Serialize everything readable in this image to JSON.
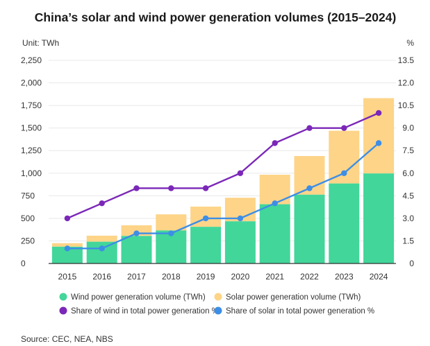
{
  "colors": {
    "wind": "#42d69a",
    "solar": "#fdd488",
    "wind_share": "#7b27b8",
    "solar_share": "#3d8ee6",
    "grid": "#e8e8e8",
    "axis": "#333333"
  },
  "chart_data": {
    "type": "bar",
    "title": "China’s solar and wind power generation volumes (2015–2024)",
    "left_unit_label": "Unit: TWh",
    "right_unit_label": "%",
    "categories": [
      "2015",
      "2016",
      "2017",
      "2018",
      "2019",
      "2020",
      "2021",
      "2022",
      "2023",
      "2024"
    ],
    "series": [
      {
        "name": "Wind power generation volume (TWh)",
        "kind": "stacked-bar",
        "axis": "left",
        "color_key": "wind",
        "values": [
          186,
          241,
          305,
          366,
          406,
          467,
          656,
          762,
          886,
          997
        ]
      },
      {
        "name": "Solar power generation volume (TWh)",
        "kind": "stacked-bar",
        "axis": "left",
        "color_key": "solar",
        "values": [
          39,
          67,
          118,
          178,
          224,
          261,
          327,
          428,
          584,
          834
        ]
      },
      {
        "name": "Share of wind in total power generation %",
        "kind": "line",
        "axis": "right",
        "color_key": "wind_share",
        "values": [
          3.0,
          4.0,
          5.0,
          5.0,
          5.0,
          6.0,
          8.0,
          9.0,
          9.0,
          10.0
        ]
      },
      {
        "name": "Share of solar in total power generation %",
        "kind": "line",
        "axis": "right",
        "color_key": "solar_share",
        "values": [
          1.0,
          1.0,
          2.0,
          2.0,
          3.0,
          3.0,
          4.0,
          5.0,
          6.0,
          8.0
        ]
      }
    ],
    "y_left": {
      "min": 0,
      "max": 2250,
      "ticks": [
        "0",
        "250",
        "500",
        "750",
        "1,000",
        "1,250",
        "1,500",
        "1,750",
        "2,000",
        "2,250"
      ]
    },
    "y_right": {
      "min": 0,
      "max": 13.5,
      "ticks": [
        "0",
        "1.5",
        "3.0",
        "4.5",
        "6.0",
        "7.5",
        "9.0",
        "10.5",
        "12.0",
        "13.5"
      ]
    },
    "legend": [
      {
        "label": "Wind power generation volume (TWh)",
        "color_key": "wind"
      },
      {
        "label": "Solar power generation volume (TWh)",
        "color_key": "solar"
      },
      {
        "label": "Share of wind in total power generation %",
        "color_key": "wind_share"
      },
      {
        "label": "Share of solar in total power generation %",
        "color_key": "solar_share"
      }
    ],
    "legend_position": "bottom",
    "grid": true,
    "source": "Source: CEC, NEA, NBS"
  }
}
